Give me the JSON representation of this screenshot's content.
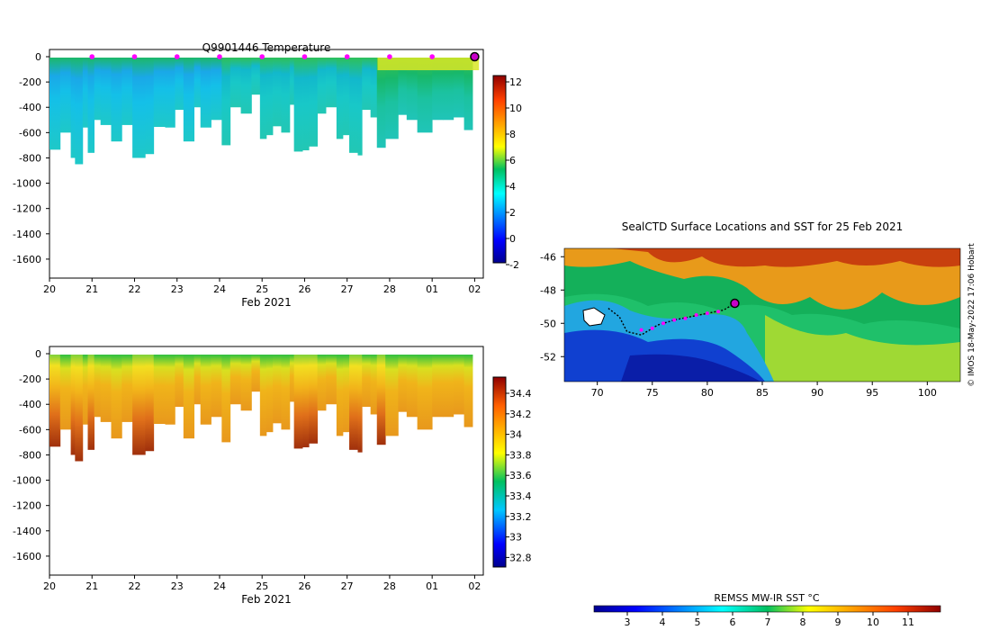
{
  "chart_data": [
    {
      "id": "temperature",
      "type": "heatmap",
      "title": "Q9901446  Temperature",
      "xlabel": "Feb 2021",
      "ylabel": "",
      "x_tick_labels": [
        "20",
        "21",
        "22",
        "23",
        "24",
        "25",
        "26",
        "27",
        "28",
        "01",
        "02"
      ],
      "y_tick_labels": [
        "0",
        "-200",
        "-400",
        "-600",
        "-800",
        "-1000",
        "-1200",
        "-1400",
        "-1600"
      ],
      "ylim": [
        -1750,
        0
      ],
      "colorbar": {
        "labels": [
          "12",
          "10",
          "8",
          "6",
          "4",
          "2",
          "0",
          "-2"
        ],
        "range": [
          -2,
          13
        ]
      },
      "surface_markers_day": [
        1,
        2,
        3,
        4,
        5,
        6,
        7,
        8,
        9
      ],
      "current_marker_day": 10,
      "columns": [
        {
          "x0": 0.0,
          "x1": 0.25,
          "depth": -735
        },
        {
          "x0": 0.25,
          "x1": 0.5,
          "depth": -600
        },
        {
          "x0": 0.5,
          "x1": 0.6,
          "depth": -800
        },
        {
          "x0": 0.6,
          "x1": 0.78,
          "depth": -850
        },
        {
          "x0": 0.78,
          "x1": 0.9,
          "depth": -560
        },
        {
          "x0": 0.9,
          "x1": 1.05,
          "depth": -760
        },
        {
          "x0": 1.05,
          "x1": 1.2,
          "depth": -500
        },
        {
          "x0": 1.2,
          "x1": 1.45,
          "depth": -540
        },
        {
          "x0": 1.45,
          "x1": 1.7,
          "depth": -670
        },
        {
          "x0": 1.7,
          "x1": 1.95,
          "depth": -540
        },
        {
          "x0": 1.95,
          "x1": 2.25,
          "depth": -800
        },
        {
          "x0": 2.25,
          "x1": 2.45,
          "depth": -770
        },
        {
          "x0": 2.45,
          "x1": 2.72,
          "depth": -555
        },
        {
          "x0": 2.72,
          "x1": 2.95,
          "depth": -560
        },
        {
          "x0": 2.95,
          "x1": 3.15,
          "depth": -420
        },
        {
          "x0": 3.15,
          "x1": 3.4,
          "depth": -670
        },
        {
          "x0": 3.4,
          "x1": 3.55,
          "depth": -400
        },
        {
          "x0": 3.55,
          "x1": 3.8,
          "depth": -560
        },
        {
          "x0": 3.8,
          "x1": 4.05,
          "depth": -500
        },
        {
          "x0": 4.05,
          "x1": 4.25,
          "depth": -700
        },
        {
          "x0": 4.25,
          "x1": 4.5,
          "depth": -400
        },
        {
          "x0": 4.5,
          "x1": 4.75,
          "depth": -450
        },
        {
          "x0": 4.75,
          "x1": 4.95,
          "depth": -300
        },
        {
          "x0": 4.95,
          "x1": 5.1,
          "depth": -650
        },
        {
          "x0": 5.1,
          "x1": 5.25,
          "depth": -620
        },
        {
          "x0": 5.25,
          "x1": 5.45,
          "depth": -550
        },
        {
          "x0": 5.45,
          "x1": 5.65,
          "depth": -600
        },
        {
          "x0": 5.65,
          "x1": 5.75,
          "depth": -380
        },
        {
          "x0": 5.75,
          "x1": 5.95,
          "depth": -750
        },
        {
          "x0": 5.95,
          "x1": 6.1,
          "depth": -740
        },
        {
          "x0": 6.1,
          "x1": 6.3,
          "depth": -710
        },
        {
          "x0": 6.3,
          "x1": 6.5,
          "depth": -450
        },
        {
          "x0": 6.5,
          "x1": 6.75,
          "depth": -400
        },
        {
          "x0": 6.75,
          "x1": 6.9,
          "depth": -650
        },
        {
          "x0": 6.9,
          "x1": 7.05,
          "depth": -620
        },
        {
          "x0": 7.05,
          "x1": 7.25,
          "depth": -760
        },
        {
          "x0": 7.25,
          "x1": 7.35,
          "depth": -780
        },
        {
          "x0": 7.35,
          "x1": 7.55,
          "depth": -420
        },
        {
          "x0": 7.55,
          "x1": 7.7,
          "depth": -480
        },
        {
          "x0": 7.7,
          "x1": 7.9,
          "depth": -720
        },
        {
          "x0": 7.9,
          "x1": 8.2,
          "depth": -650
        },
        {
          "x0": 8.2,
          "x1": 8.4,
          "depth": -460
        },
        {
          "x0": 8.4,
          "x1": 8.65,
          "depth": -500
        },
        {
          "x0": 8.65,
          "x1": 9.0,
          "depth": -600
        },
        {
          "x0": 9.0,
          "x1": 9.25,
          "depth": -500
        },
        {
          "x0": 9.25,
          "x1": 9.5,
          "depth": -500
        },
        {
          "x0": 9.5,
          "x1": 9.75,
          "depth": -480
        },
        {
          "x0": 9.75,
          "x1": 9.95,
          "depth": -580
        }
      ]
    },
    {
      "id": "salinity",
      "type": "heatmap",
      "title": "",
      "xlabel": "Feb 2021",
      "ylabel": "",
      "x_tick_labels": [
        "20",
        "21",
        "22",
        "23",
        "24",
        "25",
        "26",
        "27",
        "28",
        "01",
        "02"
      ],
      "y_tick_labels": [
        "0",
        "-200",
        "-400",
        "-600",
        "-800",
        "-1000",
        "-1200",
        "-1400",
        "-1600"
      ],
      "ylim": [
        -1750,
        0
      ],
      "colorbar": {
        "labels": [
          "34.4",
          "34.2",
          "34",
          "33.8",
          "33.6",
          "33.4",
          "33.2",
          "33",
          "32.8"
        ],
        "range": [
          32.7,
          34.5
        ]
      }
    },
    {
      "id": "sst_map",
      "type": "heatmap",
      "title": "SealCTD Surface Locations and SST for 25 Feb 2021",
      "xlabel": "",
      "ylabel": "",
      "x_tick_labels": [
        "70",
        "75",
        "80",
        "85",
        "90",
        "95",
        "100"
      ],
      "y_tick_labels": [
        "-46",
        "-48",
        "-50",
        "-52"
      ],
      "xlim": [
        67,
        103
      ],
      "ylim": [
        -53.5,
        -45.5
      ],
      "colorbar": {
        "title": "REMSS MW-IR SST °C",
        "labels": [
          "3",
          "4",
          "5",
          "6",
          "7",
          "8",
          "9",
          "10",
          "11"
        ],
        "range": [
          2,
          12
        ]
      },
      "track": [
        [
          71,
          -49.1
        ],
        [
          72,
          -49.6
        ],
        [
          72.7,
          -50.5
        ],
        [
          74,
          -50.7
        ],
        [
          75.5,
          -50.1
        ],
        [
          77,
          -49.8
        ],
        [
          78.5,
          -49.6
        ],
        [
          80,
          -49.4
        ],
        [
          81.5,
          -49.2
        ],
        [
          82.5,
          -48.8
        ]
      ],
      "track_points": [
        [
          74,
          -50.4
        ],
        [
          75,
          -50.3
        ],
        [
          76,
          -50.0
        ],
        [
          77,
          -49.8
        ],
        [
          78,
          -49.7
        ],
        [
          79,
          -49.5
        ],
        [
          80,
          -49.4
        ],
        [
          81,
          -49.3
        ]
      ],
      "current_position": [
        82.5,
        -48.8
      ]
    }
  ],
  "watermark": "© IMOS 18-May-2022 17:06 Hobart"
}
